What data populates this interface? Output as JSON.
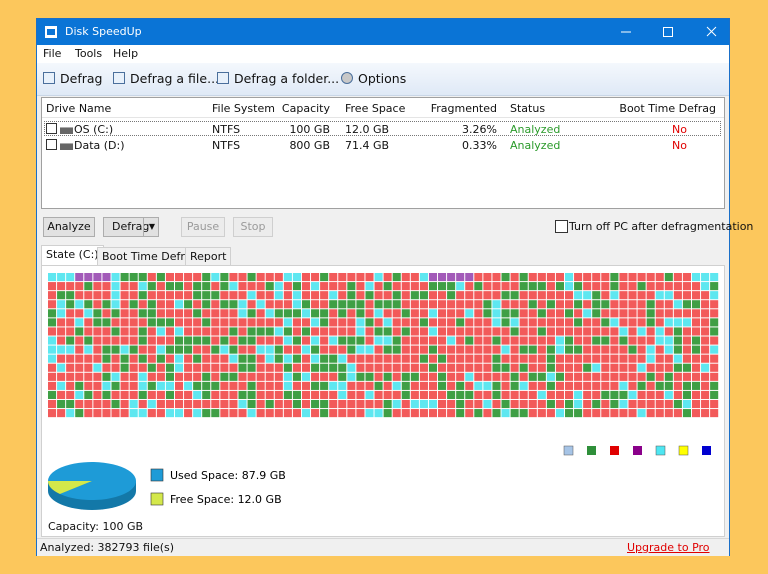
{
  "window": {
    "title": "Disk SpeedUp"
  },
  "menu": [
    "File",
    "Tools",
    "Help"
  ],
  "toolbar": [
    "Defrag",
    "Defrag a file...",
    "Defrag a folder...",
    "Options"
  ],
  "drives": {
    "columns": [
      "Drive Name",
      "File System",
      "Capacity",
      "Free Space",
      "Fragmented",
      "Status",
      "Boot Time Defrag"
    ],
    "rows": [
      [
        "OS (C:)",
        "NTFS",
        "100 GB",
        "12.0 GB",
        "3.26%",
        "Analyzed",
        "No"
      ],
      [
        "Data (D:)",
        "NTFS",
        "800 GB",
        "71.4 GB",
        "0.33%",
        "Analyzed",
        "No"
      ]
    ]
  },
  "buttons": [
    "Analyze",
    "Defrag",
    "Pause",
    "Stop"
  ],
  "shutdown_option": "Turn off PC after defragmentation",
  "tabs": [
    "State (C:)",
    "Boot Time Defrag",
    "Report"
  ],
  "usage": {
    "slices": [
      {
        "label": "Used Space: 87.9 GB",
        "value": 87.9,
        "color": "#1e9bd7"
      },
      {
        "label": "Free Space: 12.0 GB",
        "value": 12.0,
        "color": "#d4e84b"
      }
    ],
    "capacity": "Capacity: 100 GB"
  },
  "status": {
    "text": "Analyzed: 382793 file(s)",
    "link": "Upgrade to Pro"
  }
}
